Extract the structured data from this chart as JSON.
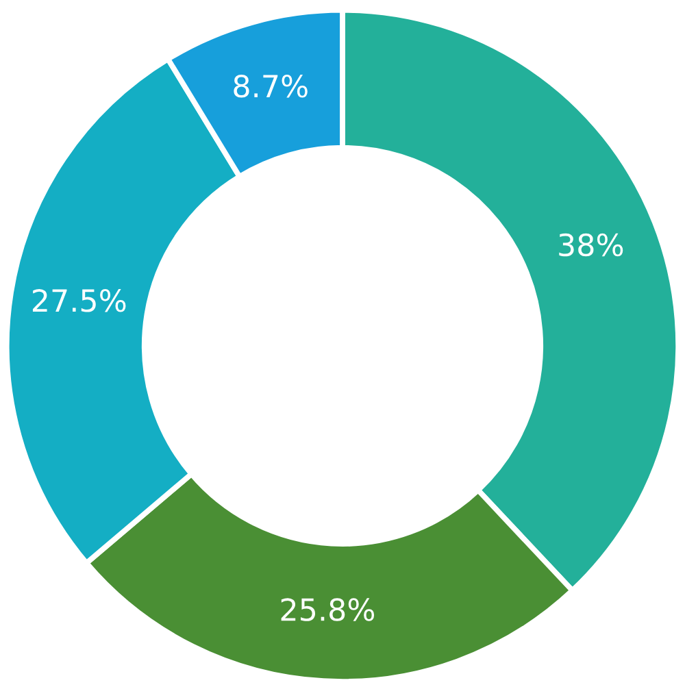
{
  "chart_data": {
    "type": "donut",
    "categories": [
      null,
      null,
      null,
      null
    ],
    "values": [
      38,
      25.8,
      27.5,
      8.7
    ],
    "value_labels": [
      "38%",
      "25.8%",
      "27.5%",
      "8.7%"
    ],
    "colors": [
      "#23b09a",
      "#4a8f34",
      "#14aec4",
      "#179fdb"
    ],
    "legend": false
  }
}
